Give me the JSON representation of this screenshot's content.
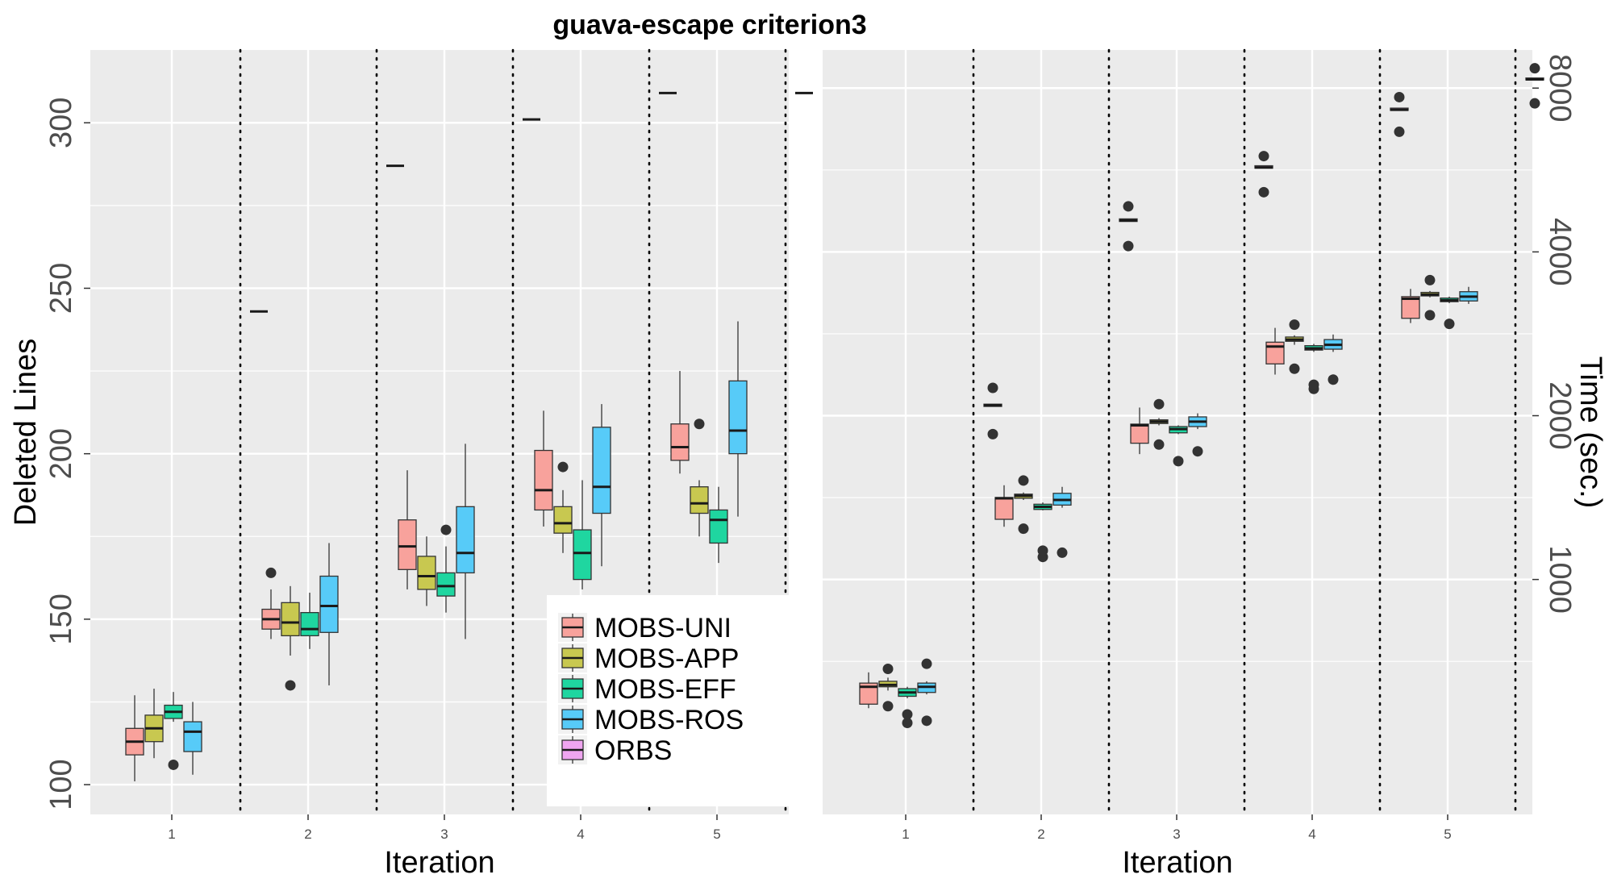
{
  "title": "guava-escape criterion3",
  "legend": [
    {
      "label": "MOBS-UNI",
      "color": "#F8A29C"
    },
    {
      "label": "MOBS-APP",
      "color": "#C8C850"
    },
    {
      "label": "MOBS-EFF",
      "color": "#1FD6A0"
    },
    {
      "label": "MOBS-ROS",
      "color": "#57CBF8"
    },
    {
      "label": "ORBS",
      "color": "#EFA5F0"
    }
  ],
  "chart_data": [
    {
      "type": "box",
      "xlabel": "Iteration",
      "ylabel": "Deleted Lines",
      "ylim": [
        91,
        322
      ],
      "y_ticks": [
        100,
        150,
        200,
        250,
        300
      ],
      "y_tick_labels": [
        "100",
        "150",
        "200",
        "250",
        "300"
      ],
      "categories": [
        "1",
        "2",
        "3",
        "4",
        "5"
      ],
      "grid": true,
      "series": [
        {
          "name": "MOBS-UNI",
          "boxes": [
            {
              "min": 101,
              "q1": 109,
              "median": 113,
              "q3": 117,
              "max": 127,
              "outliers": []
            },
            {
              "min": 144,
              "q1": 147,
              "median": 150,
              "q3": 153,
              "max": 159,
              "outliers": [
                164
              ]
            },
            {
              "min": 159,
              "q1": 165,
              "median": 172,
              "q3": 180,
              "max": 195,
              "outliers": []
            },
            {
              "min": 178,
              "q1": 183,
              "median": 189,
              "q3": 201,
              "max": 213,
              "outliers": []
            },
            {
              "min": 194,
              "q1": 198,
              "median": 202,
              "q3": 209,
              "max": 225,
              "outliers": []
            }
          ]
        },
        {
          "name": "MOBS-APP",
          "boxes": [
            {
              "min": 108,
              "q1": 113,
              "median": 117,
              "q3": 121,
              "max": 129,
              "outliers": []
            },
            {
              "min": 139,
              "q1": 145,
              "median": 149,
              "q3": 155,
              "max": 160,
              "outliers": [
                130
              ]
            },
            {
              "min": 154,
              "q1": 159,
              "median": 163,
              "q3": 169,
              "max": 175,
              "outliers": []
            },
            {
              "min": 170,
              "q1": 176,
              "median": 179,
              "q3": 184,
              "max": 189,
              "outliers": [
                196
              ]
            },
            {
              "min": 175,
              "q1": 182,
              "median": 185,
              "q3": 190,
              "max": 192,
              "outliers": [
                209
              ]
            }
          ]
        },
        {
          "name": "MOBS-EFF",
          "boxes": [
            {
              "min": 119,
              "q1": 120,
              "median": 122,
              "q3": 124,
              "max": 128,
              "outliers": [
                106
              ]
            },
            {
              "min": 141,
              "q1": 145,
              "median": 147,
              "q3": 152,
              "max": 158,
              "outliers": []
            },
            {
              "min": 152,
              "q1": 157,
              "median": 160,
              "q3": 164,
              "max": 172,
              "outliers": [
                177
              ]
            },
            {
              "min": 159,
              "q1": 162,
              "median": 170,
              "q3": 177,
              "max": 192,
              "outliers": []
            },
            {
              "min": 167,
              "q1": 173,
              "median": 180,
              "q3": 183,
              "max": 190,
              "outliers": []
            }
          ]
        },
        {
          "name": "MOBS-ROS",
          "boxes": [
            {
              "min": 103,
              "q1": 110,
              "median": 116,
              "q3": 119,
              "max": 125,
              "outliers": []
            },
            {
              "min": 130,
              "q1": 146,
              "median": 154,
              "q3": 163,
              "max": 173,
              "outliers": []
            },
            {
              "min": 144,
              "q1": 164,
              "median": 170,
              "q3": 184,
              "max": 203,
              "outliers": []
            },
            {
              "min": 166,
              "q1": 182,
              "median": 190,
              "q3": 208,
              "max": 215,
              "outliers": []
            },
            {
              "min": 181,
              "q1": 200,
              "median": 207,
              "q3": 222,
              "max": 240,
              "outliers": []
            }
          ]
        },
        {
          "name": "ORBS",
          "boxes": [
            {
              "min": 243,
              "q1": 243,
              "median": 243,
              "q3": 243,
              "max": 243,
              "outliers": []
            },
            {
              "min": 287,
              "q1": 287,
              "median": 287,
              "q3": 287,
              "max": 287,
              "outliers": []
            },
            {
              "min": 301,
              "q1": 301,
              "median": 301,
              "q3": 301,
              "max": 301,
              "outliers": []
            },
            {
              "min": 309,
              "q1": 309,
              "median": 309,
              "q3": 309,
              "max": 309,
              "outliers": []
            },
            {
              "min": 309,
              "q1": 309,
              "median": 309,
              "q3": 309,
              "max": 309,
              "outliers": []
            }
          ]
        }
      ]
    },
    {
      "type": "box",
      "xlabel": "Iteration",
      "ylabel": "Time (sec.)",
      "y_scale": "log2",
      "ylim": [
        370,
        9400
      ],
      "y_ticks": [
        1000,
        2000,
        4000,
        8000
      ],
      "y_tick_labels": [
        "1000",
        "2000",
        "4000",
        "8000"
      ],
      "y_axis_position": "right",
      "categories": [
        "1",
        "2",
        "3",
        "4",
        "5"
      ],
      "grid": true,
      "series": [
        {
          "name": "MOBS-UNI",
          "boxes": [
            {
              "min": 580,
              "q1": 590,
              "median": 635,
              "q3": 645,
              "max": 675,
              "outliers": []
            },
            {
              "min": 1250,
              "q1": 1290,
              "median": 1410,
              "q3": 1415,
              "max": 1490,
              "outliers": []
            },
            {
              "min": 1700,
              "q1": 1780,
              "median": 1920,
              "q3": 1930,
              "max": 2070,
              "outliers": []
            },
            {
              "min": 2380,
              "q1": 2490,
              "median": 2680,
              "q3": 2730,
              "max": 2900,
              "outliers": []
            },
            {
              "min": 2960,
              "q1": 3020,
              "median": 3280,
              "q3": 3310,
              "max": 3420,
              "outliers": []
            }
          ]
        },
        {
          "name": "MOBS-APP",
          "boxes": [
            {
              "min": 625,
              "q1": 635,
              "median": 640,
              "q3": 650,
              "max": 660,
              "outliers": [
                585,
                685
              ]
            },
            {
              "min": 1400,
              "q1": 1410,
              "median": 1425,
              "q3": 1435,
              "max": 1445,
              "outliers": [
                1240,
                1520
              ]
            },
            {
              "min": 1920,
              "q1": 1935,
              "median": 1950,
              "q3": 1965,
              "max": 1980,
              "outliers": [
                1770,
                2100
              ]
            },
            {
              "min": 2700,
              "q1": 2740,
              "median": 2760,
              "q3": 2790,
              "max": 2810,
              "outliers": [
                2440,
                2940
              ]
            },
            {
              "min": 3300,
              "q1": 3320,
              "median": 3340,
              "q3": 3370,
              "max": 3390,
              "outliers": [
                3060,
                3550
              ]
            }
          ]
        },
        {
          "name": "MOBS-EFF",
          "boxes": [
            {
              "min": 605,
              "q1": 610,
              "median": 620,
              "q3": 630,
              "max": 635,
              "outliers": [
                545,
                565
              ]
            },
            {
              "min": 1340,
              "q1": 1345,
              "median": 1360,
              "q3": 1375,
              "max": 1385,
              "outliers": [
                1100,
                1130
              ]
            },
            {
              "min": 1850,
              "q1": 1860,
              "median": 1890,
              "q3": 1910,
              "max": 1920,
              "outliers": [
                1650
              ]
            },
            {
              "min": 2620,
              "q1": 2640,
              "median": 2660,
              "q3": 2690,
              "max": 2710,
              "outliers": [
                2240,
                2280
              ]
            },
            {
              "min": 3220,
              "q1": 3240,
              "median": 3260,
              "q3": 3290,
              "max": 3310,
              "outliers": [
                2950
              ]
            }
          ]
        },
        {
          "name": "MOBS-ROS",
          "boxes": [
            {
              "min": 615,
              "q1": 620,
              "median": 635,
              "q3": 645,
              "max": 650,
              "outliers": [
                550,
                700
              ]
            },
            {
              "min": 1355,
              "q1": 1370,
              "median": 1400,
              "q3": 1440,
              "max": 1480,
              "outliers": [
                1120
              ]
            },
            {
              "min": 1890,
              "q1": 1910,
              "median": 1950,
              "q3": 1990,
              "max": 2020,
              "outliers": [
                1720
              ]
            },
            {
              "min": 2620,
              "q1": 2650,
              "median": 2700,
              "q3": 2760,
              "max": 2820,
              "outliers": [
                2330
              ]
            },
            {
              "min": 3210,
              "q1": 3250,
              "median": 3310,
              "q3": 3380,
              "max": 3450,
              "outliers": []
            }
          ]
        },
        {
          "name": "ORBS",
          "boxes": [
            {
              "min": 2080,
              "q1": 2080,
              "median": 2090,
              "q3": 2100,
              "max": 2100,
              "outliers": [
                1850,
                2250
              ]
            },
            {
              "min": 4550,
              "q1": 4550,
              "median": 4570,
              "q3": 4600,
              "max": 4600,
              "outliers": [
                4100,
                4850
              ]
            },
            {
              "min": 5700,
              "q1": 5700,
              "median": 5720,
              "q3": 5760,
              "max": 5760,
              "outliers": [
                5150,
                6000
              ]
            },
            {
              "min": 7280,
              "q1": 7280,
              "median": 7300,
              "q3": 7350,
              "max": 7350,
              "outliers": [
                6650,
                7700
              ]
            },
            {
              "min": 8280,
              "q1": 8280,
              "median": 8300,
              "q3": 8350,
              "max": 8350,
              "outliers": [
                7500,
                8700
              ]
            }
          ]
        }
      ]
    }
  ]
}
